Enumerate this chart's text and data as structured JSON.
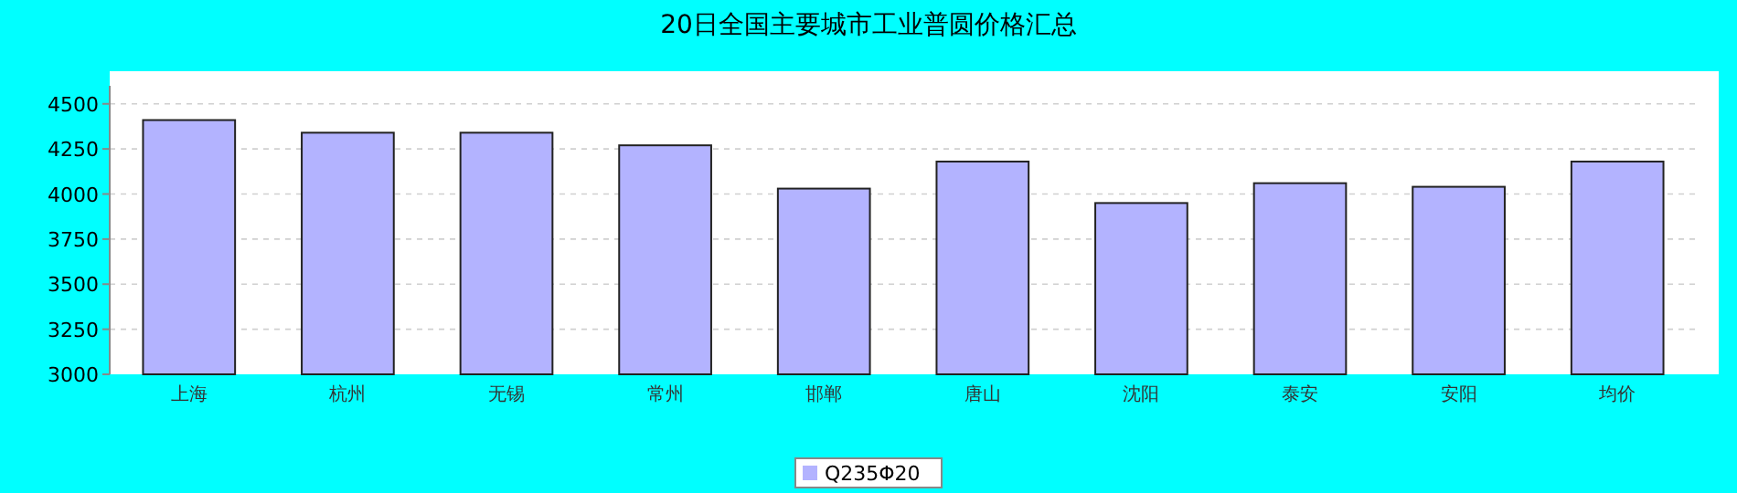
{
  "chart_data": {
    "type": "bar",
    "title": "20日全国主要城市工业普圆价格汇总",
    "categories": [
      "上海",
      "杭州",
      "无锡",
      "常州",
      "邯郸",
      "唐山",
      "沈阳",
      "泰安",
      "安阳",
      "均价"
    ],
    "series": [
      {
        "name": "Q235Φ20",
        "color": "#b3b3ff",
        "values": [
          4410,
          4340,
          4340,
          4270,
          4030,
          4180,
          3950,
          4060,
          4040,
          4180
        ]
      }
    ],
    "ylim": [
      3000,
      4600
    ],
    "yticks": [
      3000,
      3250,
      3500,
      3750,
      4000,
      4250,
      4500
    ],
    "grid": "y",
    "legend": "bottom"
  }
}
